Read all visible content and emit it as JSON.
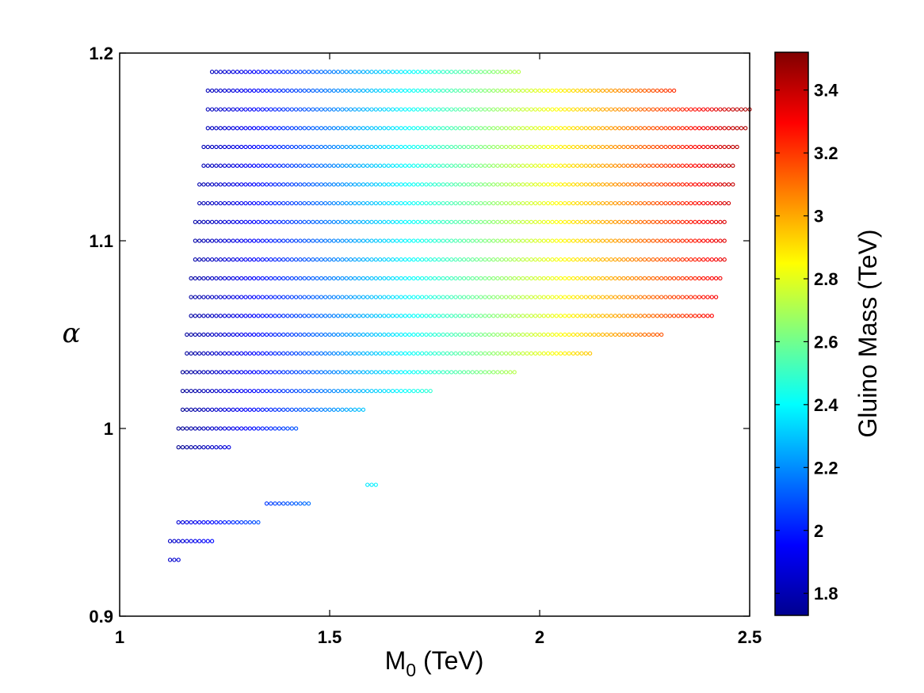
{
  "chart_data": {
    "type": "scatter",
    "title": "",
    "xlabel": {
      "main": "M",
      "subscript": "0",
      "suffix": " (TeV)"
    },
    "ylabel": "α",
    "colorbar_label": "Gluino Mass (TeV)",
    "xlim": [
      1,
      2.5
    ],
    "ylim": [
      0.9,
      1.2
    ],
    "x_ticks": [
      {
        "value": 1,
        "label": "1"
      },
      {
        "value": 1.5,
        "label": "1.5"
      },
      {
        "value": 2,
        "label": "2"
      },
      {
        "value": 2.5,
        "label": "2.5"
      }
    ],
    "y_ticks": [
      {
        "value": 0.9,
        "label": "0.9"
      },
      {
        "value": 1.0,
        "label": "1"
      },
      {
        "value": 1.1,
        "label": "1.1"
      },
      {
        "value": 1.2,
        "label": "1.2"
      }
    ],
    "colorbar_range": [
      1.73,
      3.52
    ],
    "colorbar_ticks": [
      {
        "value": 1.8,
        "label": "1.8"
      },
      {
        "value": 2.0,
        "label": "2"
      },
      {
        "value": 2.2,
        "label": "2.2"
      },
      {
        "value": 2.4,
        "label": "2.4"
      },
      {
        "value": 2.6,
        "label": "2.6"
      },
      {
        "value": 2.8,
        "label": "2.8"
      },
      {
        "value": 3.0,
        "label": "3"
      },
      {
        "value": 3.2,
        "label": "3.2"
      },
      {
        "value": 3.4,
        "label": "3.4"
      }
    ],
    "colormap": "jet",
    "x_step": 0.01,
    "rows": [
      {
        "alpha": 1.19,
        "x_start": 1.22,
        "x_end": 1.95,
        "gm_start": 1.84,
        "gm_end": 2.72
      },
      {
        "alpha": 1.18,
        "x_start": 1.21,
        "x_end": 2.32,
        "gm_start": 1.83,
        "gm_end": 3.22
      },
      {
        "alpha": 1.17,
        "x_start": 1.21,
        "x_end": 2.5,
        "gm_start": 1.83,
        "gm_end": 3.45
      },
      {
        "alpha": 1.16,
        "x_start": 1.21,
        "x_end": 2.49,
        "gm_start": 1.83,
        "gm_end": 3.44
      },
      {
        "alpha": 1.15,
        "x_start": 1.2,
        "x_end": 2.47,
        "gm_start": 1.82,
        "gm_end": 3.42
      },
      {
        "alpha": 1.14,
        "x_start": 1.2,
        "x_end": 2.46,
        "gm_start": 1.82,
        "gm_end": 3.41
      },
      {
        "alpha": 1.13,
        "x_start": 1.19,
        "x_end": 2.46,
        "gm_start": 1.81,
        "gm_end": 3.4
      },
      {
        "alpha": 1.12,
        "x_start": 1.19,
        "x_end": 2.45,
        "gm_start": 1.81,
        "gm_end": 3.38
      },
      {
        "alpha": 1.11,
        "x_start": 1.18,
        "x_end": 2.44,
        "gm_start": 1.8,
        "gm_end": 3.36
      },
      {
        "alpha": 1.1,
        "x_start": 1.18,
        "x_end": 2.44,
        "gm_start": 1.8,
        "gm_end": 3.35
      },
      {
        "alpha": 1.09,
        "x_start": 1.18,
        "x_end": 2.44,
        "gm_start": 1.8,
        "gm_end": 3.34
      },
      {
        "alpha": 1.08,
        "x_start": 1.17,
        "x_end": 2.43,
        "gm_start": 1.79,
        "gm_end": 3.32
      },
      {
        "alpha": 1.07,
        "x_start": 1.17,
        "x_end": 2.42,
        "gm_start": 1.79,
        "gm_end": 3.31
      },
      {
        "alpha": 1.06,
        "x_start": 1.17,
        "x_end": 2.41,
        "gm_start": 1.79,
        "gm_end": 3.29
      },
      {
        "alpha": 1.05,
        "x_start": 1.16,
        "x_end": 2.29,
        "gm_start": 1.78,
        "gm_end": 3.15
      },
      {
        "alpha": 1.04,
        "x_start": 1.16,
        "x_end": 2.12,
        "gm_start": 1.78,
        "gm_end": 2.95
      },
      {
        "alpha": 1.03,
        "x_start": 1.15,
        "x_end": 1.94,
        "gm_start": 1.77,
        "gm_end": 2.72
      },
      {
        "alpha": 1.02,
        "x_start": 1.15,
        "x_end": 1.74,
        "gm_start": 1.77,
        "gm_end": 2.48
      },
      {
        "alpha": 1.01,
        "x_start": 1.15,
        "x_end": 1.58,
        "gm_start": 1.77,
        "gm_end": 2.3
      },
      {
        "alpha": 1.0,
        "x_start": 1.14,
        "x_end": 1.42,
        "gm_start": 1.76,
        "gm_end": 2.1
      },
      {
        "alpha": 0.99,
        "x_start": 1.14,
        "x_end": 1.26,
        "gm_start": 1.76,
        "gm_end": 1.9
      },
      {
        "alpha": 0.97,
        "x_start": 1.59,
        "x_end": 1.61,
        "gm_start": 2.36,
        "gm_end": 2.38
      },
      {
        "alpha": 0.96,
        "x_start": 1.35,
        "x_end": 1.45,
        "gm_start": 2.05,
        "gm_end": 2.15
      },
      {
        "alpha": 0.95,
        "x_start": 1.14,
        "x_end": 1.33,
        "gm_start": 1.88,
        "gm_end": 2.1
      },
      {
        "alpha": 0.94,
        "x_start": 1.12,
        "x_end": 1.22,
        "gm_start": 1.85,
        "gm_end": 1.97
      },
      {
        "alpha": 0.93,
        "x_start": 1.12,
        "x_end": 1.14,
        "gm_start": 1.86,
        "gm_end": 1.88
      }
    ]
  }
}
